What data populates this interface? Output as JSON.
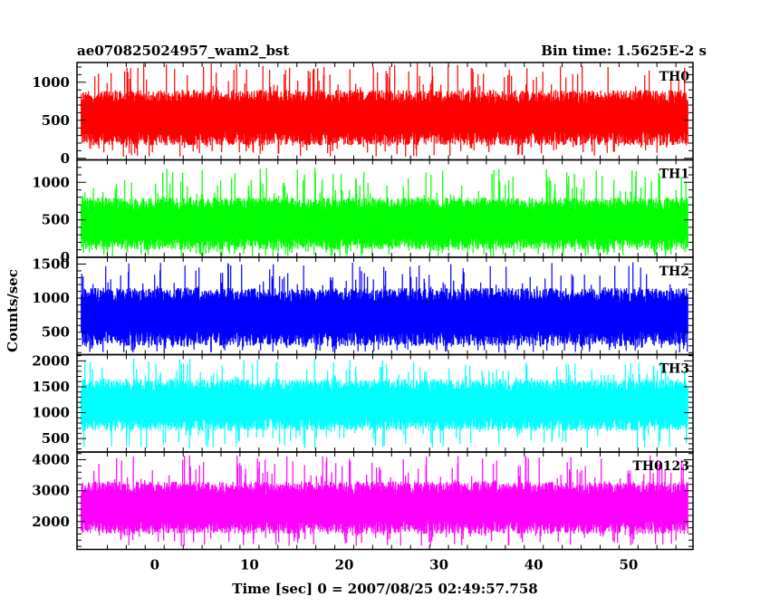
{
  "header": {
    "file_name": "ae070825024957_wam2_bst",
    "bin_time": "Bin time: 1.5625E-2 s"
  },
  "chart_data": {
    "type": "line",
    "xlabel": "Time [sec] 0 = 2007/08/25 02:49:57.758",
    "ylabel": "Counts/sec",
    "xlim": [
      -8.2,
      56.8
    ],
    "data_range": [
      -7.75,
      56.25
    ],
    "bin_time": 0.015625,
    "x_ticks": [
      0,
      10,
      20,
      30,
      40,
      50
    ],
    "panels": [
      {
        "name": "TH0",
        "color": "#ff0000",
        "ylim": [
          -20,
          1260
        ],
        "y_ticks": [
          0,
          500,
          1000
        ],
        "typical_low": 170,
        "typical_high": 900,
        "min": 20,
        "max": 1260
      },
      {
        "name": "TH1",
        "color": "#00ff00",
        "ylim": [
          0,
          1300
        ],
        "y_ticks": [
          0,
          500,
          1000
        ],
        "typical_low": 100,
        "typical_high": 800,
        "min": 10,
        "max": 1200
      },
      {
        "name": "TH2",
        "color": "#0000ff",
        "ylim": [
          170,
          1600
        ],
        "y_ticks": [
          500,
          1000,
          1500
        ],
        "typical_low": 300,
        "typical_high": 1150,
        "min": 200,
        "max": 1550
      },
      {
        "name": "TH3",
        "color": "#00ffff",
        "ylim": [
          240,
          2120
        ],
        "y_ticks": [
          500,
          1000,
          1500,
          2000
        ],
        "typical_low": 650,
        "typical_high": 1650,
        "min": 300,
        "max": 2050
      },
      {
        "name": "TH0123",
        "color": "#ff00ff",
        "ylim": [
          1100,
          4250
        ],
        "y_ticks": [
          2000,
          3000,
          4000
        ],
        "typical_low": 1600,
        "typical_high": 3300,
        "min": 1200,
        "max": 4200
      }
    ]
  }
}
